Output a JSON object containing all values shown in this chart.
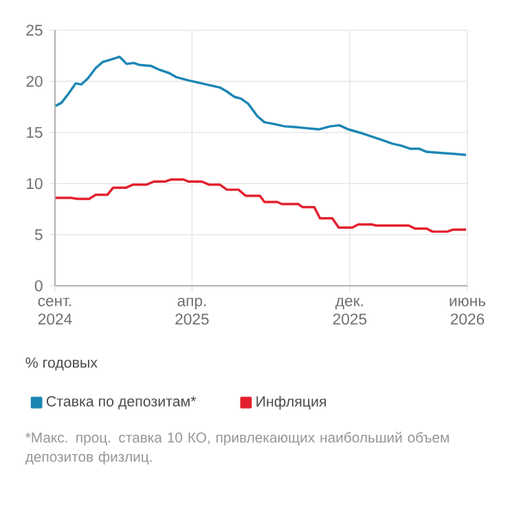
{
  "chart_data": {
    "type": "line",
    "xlim": [
      "2024-09-01",
      "2026-06-01"
    ],
    "xticks": [
      {
        "value": "2024-09-01",
        "label": "сент. 2024"
      },
      {
        "value": "2025-04-01",
        "label": "апр. 2025"
      },
      {
        "value": "2025-12-01",
        "label": "дек. 2025"
      },
      {
        "value": "2026-06-01",
        "label": "июнь 2026"
      }
    ],
    "ylim": [
      0,
      25
    ],
    "yticks": [
      0,
      5,
      10,
      15,
      20,
      25
    ],
    "grid": true,
    "legend": "bottom",
    "annotations": [
      "% годовых",
      "*Макс. проц. ставка 10 КО, привлекающих наибольший объем депозитов физлиц."
    ],
    "series": [
      {
        "name": "Ставка по депозитам*",
        "color": "#1b86b4",
        "x": [
          "2024-09-02",
          "2024-09-11",
          "2024-09-22",
          "2024-10-03",
          "2024-10-12",
          "2024-10-22",
          "2024-11-03",
          "2024-11-14",
          "2024-11-25",
          "2024-12-10",
          "2024-12-21",
          "2025-01-01",
          "2025-01-10",
          "2025-01-28",
          "2025-02-07",
          "2025-02-25",
          "2025-03-08",
          "2025-03-26",
          "2025-04-09",
          "2025-04-23",
          "2025-05-14",
          "2025-05-25",
          "2025-06-05",
          "2025-06-16",
          "2025-06-27",
          "2025-07-11",
          "2025-07-22",
          "2025-08-08",
          "2025-08-22",
          "2025-09-12",
          "2025-10-14",
          "2025-11-01",
          "2025-11-15",
          "2025-11-29",
          "2025-12-21",
          "2026-01-04",
          "2026-01-18",
          "2026-02-05",
          "2026-02-19",
          "2026-03-05",
          "2026-03-19",
          "2026-03-30",
          "2026-04-20",
          "2026-05-12",
          "2026-05-30"
        ],
        "values": [
          17.6,
          17.9,
          18.8,
          19.8,
          19.7,
          20.3,
          21.3,
          21.9,
          22.1,
          22.4,
          21.7,
          21.8,
          21.6,
          21.5,
          21.2,
          20.8,
          20.4,
          20.1,
          19.9,
          19.7,
          19.4,
          19.0,
          18.5,
          18.3,
          17.8,
          16.6,
          16.0,
          15.8,
          15.6,
          15.5,
          15.3,
          15.6,
          15.7,
          15.3,
          14.9,
          14.6,
          14.3,
          13.9,
          13.7,
          13.4,
          13.4,
          13.1,
          13.0,
          12.9,
          12.8
        ]
      },
      {
        "name": "Инфляция",
        "color": "#e3202d",
        "x": [
          "2024-09-02",
          "2024-09-26",
          "2024-10-06",
          "2024-10-24",
          "2024-11-03",
          "2024-11-21",
          "2024-11-30",
          "2024-12-20",
          "2024-12-31",
          "2025-01-21",
          "2025-02-01",
          "2025-02-19",
          "2025-02-28",
          "2025-03-19",
          "2025-03-26",
          "2025-04-16",
          "2025-04-27",
          "2025-05-14",
          "2025-05-25",
          "2025-06-12",
          "2025-06-23",
          "2025-07-15",
          "2025-07-22",
          "2025-08-11",
          "2025-08-18",
          "2025-09-12",
          "2025-09-19",
          "2025-10-07",
          "2025-10-16",
          "2025-11-04",
          "2025-11-14",
          "2025-12-05",
          "2025-12-14",
          "2026-01-04",
          "2026-01-11",
          "2026-03-02",
          "2026-03-12",
          "2026-03-30",
          "2026-04-08",
          "2026-05-01",
          "2026-05-10",
          "2026-05-30"
        ],
        "values": [
          8.6,
          8.6,
          8.5,
          8.5,
          8.9,
          8.9,
          9.6,
          9.6,
          9.9,
          9.9,
          10.2,
          10.2,
          10.4,
          10.4,
          10.2,
          10.2,
          9.9,
          9.9,
          9.4,
          9.4,
          8.8,
          8.8,
          8.2,
          8.2,
          8.0,
          8.0,
          7.7,
          7.7,
          6.6,
          6.6,
          5.7,
          5.7,
          6.0,
          6.0,
          5.9,
          5.9,
          5.6,
          5.6,
          5.3,
          5.3,
          5.5,
          5.5
        ]
      }
    ]
  }
}
